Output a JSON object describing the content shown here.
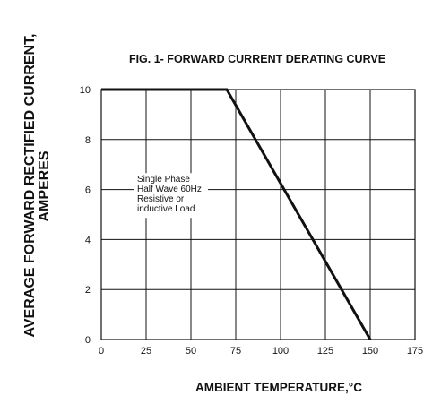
{
  "chart_data": {
    "type": "line",
    "title": "FIG. 1- FORWARD CURRENT DERATING CURVE",
    "xlabel": "AMBIENT TEMPERATURE,°C",
    "ylabel_line1": "AVERAGE FORWARD RECTIFIED CURRENT,",
    "ylabel_line2": "AMPERES",
    "xlim": [
      0,
      175
    ],
    "ylim": [
      0,
      10
    ],
    "xticks": [
      0,
      25,
      50,
      75,
      100,
      125,
      150,
      175
    ],
    "yticks": [
      0,
      2,
      4,
      6,
      8,
      10
    ],
    "grid": true,
    "series": [
      {
        "x": [
          0,
          70,
          150
        ],
        "y": [
          10,
          10,
          0
        ]
      }
    ],
    "annotation": {
      "lines": [
        "Single Phase",
        "Half Wave 60Hz",
        "Resistive or",
        "inductive Load"
      ],
      "x": 20,
      "y": 6.3
    }
  }
}
